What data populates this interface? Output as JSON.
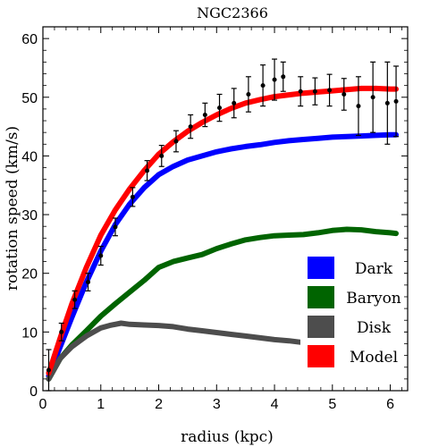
{
  "chart_data": {
    "type": "line",
    "title": "NGC2366",
    "xlabel": "radius (kpc)",
    "ylabel": "rotation speed (km/s)",
    "xlim": [
      0,
      6.3
    ],
    "ylim": [
      0,
      62
    ],
    "xticks": [
      0,
      1,
      2,
      3,
      4,
      5,
      6
    ],
    "yticks": [
      0,
      10,
      20,
      30,
      40,
      50,
      60
    ],
    "grid": false,
    "legend_position": "bottom-right",
    "series": [
      {
        "name": "Dark",
        "color": "#0000ff",
        "x": [
          0.1,
          0.3,
          0.5,
          0.75,
          1.0,
          1.25,
          1.5,
          1.75,
          2.0,
          2.25,
          2.5,
          2.75,
          3.0,
          3.25,
          3.5,
          3.75,
          4.0,
          4.25,
          4.5,
          4.75,
          5.0,
          5.25,
          5.5,
          5.75,
          6.0,
          6.1
        ],
        "y": [
          2.5,
          7.5,
          12.5,
          18.5,
          23.8,
          28.3,
          31.8,
          34.6,
          36.8,
          38.2,
          39.3,
          40.0,
          40.7,
          41.2,
          41.6,
          41.9,
          42.3,
          42.6,
          42.8,
          43.0,
          43.2,
          43.3,
          43.4,
          43.5,
          43.6,
          43.6
        ]
      },
      {
        "name": "Baryon",
        "color": "#006400",
        "x": [
          0.1,
          0.3,
          0.5,
          0.75,
          1.0,
          1.25,
          1.5,
          1.75,
          2.0,
          2.25,
          2.5,
          2.75,
          3.0,
          3.25,
          3.5,
          3.75,
          4.0,
          4.25,
          4.5,
          4.75,
          5.0,
          5.25,
          5.5,
          5.75,
          6.0,
          6.1
        ],
        "y": [
          2.0,
          5.5,
          7.8,
          10.2,
          12.7,
          14.8,
          16.8,
          18.8,
          21.0,
          22.0,
          22.6,
          23.2,
          24.2,
          25.0,
          25.7,
          26.1,
          26.4,
          26.5,
          26.6,
          26.9,
          27.3,
          27.5,
          27.4,
          27.1,
          26.9,
          26.8
        ]
      },
      {
        "name": "Disk",
        "color": "#4d4d4d",
        "x": [
          0.1,
          0.3,
          0.5,
          0.75,
          1.0,
          1.15,
          1.35,
          1.5,
          1.75,
          2.0,
          2.25,
          2.5,
          2.75,
          3.0,
          3.25,
          3.5,
          3.75,
          4.0,
          4.25,
          4.5,
          4.75,
          5.0,
          5.25,
          5.5,
          5.75,
          6.0,
          6.1
        ],
        "y": [
          2.0,
          5.5,
          7.5,
          9.3,
          10.7,
          11.1,
          11.5,
          11.3,
          11.2,
          11.1,
          10.9,
          10.5,
          10.2,
          9.9,
          9.6,
          9.3,
          9.0,
          8.7,
          8.5,
          8.2,
          8.0,
          7.7,
          7.5,
          7.3,
          7.1,
          6.9,
          6.8
        ]
      },
      {
        "name": "Model",
        "color": "#ff0000",
        "x": [
          0.1,
          0.3,
          0.5,
          0.75,
          1.0,
          1.25,
          1.5,
          1.75,
          2.0,
          2.25,
          2.5,
          2.75,
          3.0,
          3.25,
          3.5,
          3.75,
          4.0,
          4.25,
          4.5,
          4.75,
          5.0,
          5.25,
          5.5,
          5.75,
          6.0,
          6.1
        ],
        "y": [
          3.0,
          9.0,
          14.8,
          21.0,
          26.5,
          30.8,
          34.4,
          37.5,
          40.3,
          42.4,
          44.2,
          45.7,
          47.0,
          48.1,
          49.0,
          49.6,
          50.1,
          50.4,
          50.7,
          50.9,
          51.1,
          51.3,
          51.5,
          51.5,
          51.4,
          51.4
        ]
      }
    ],
    "observations": {
      "color": "#000000",
      "x": [
        0.1,
        0.32,
        0.55,
        0.78,
        1.0,
        1.25,
        1.55,
        1.8,
        2.05,
        2.3,
        2.55,
        2.8,
        3.05,
        3.3,
        3.55,
        3.8,
        4.0,
        4.15,
        4.45,
        4.7,
        4.95,
        5.2,
        5.45,
        5.7,
        5.95,
        6.1
      ],
      "y": [
        3.5,
        10.0,
        15.5,
        18.5,
        23.0,
        27.9,
        33.0,
        37.5,
        40.0,
        42.5,
        45.0,
        47.0,
        48.2,
        49.0,
        50.5,
        52.0,
        53.0,
        53.5,
        51.0,
        51.0,
        51.2,
        50.5,
        48.5,
        50.0,
        49.0,
        49.3
      ],
      "err": [
        3.5,
        1.5,
        1.5,
        1.5,
        1.6,
        1.5,
        1.6,
        1.7,
        1.8,
        1.8,
        2.0,
        2.0,
        2.3,
        2.5,
        3.0,
        3.5,
        3.5,
        2.5,
        2.5,
        2.3,
        2.7,
        2.7,
        5.0,
        6.0,
        7.0,
        6.0
      ]
    }
  }
}
